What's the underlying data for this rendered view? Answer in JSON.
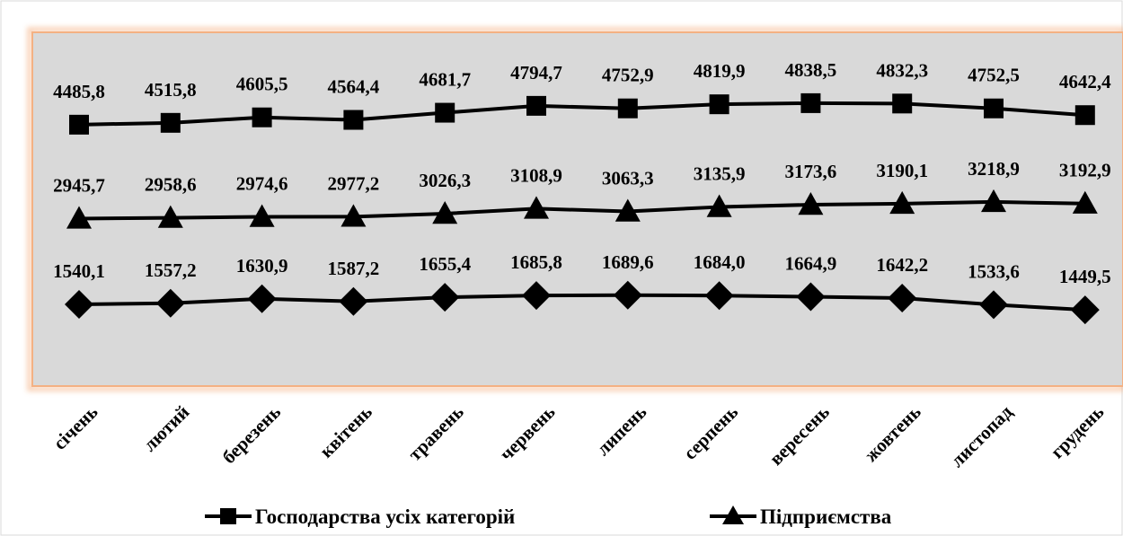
{
  "chart_data": {
    "type": "line",
    "categories": [
      "січень",
      "лютий",
      "березень",
      "квітень",
      "травень",
      "червень",
      "липень",
      "серпень",
      "вересень",
      "жовтень",
      "листопад",
      "грудень"
    ],
    "series": [
      {
        "name": "Господарства усіх категорій",
        "marker": "square",
        "values": [
          4485.8,
          4515.8,
          4605.5,
          4564.4,
          4681.7,
          4794.7,
          4752.9,
          4819.9,
          4838.5,
          4832.3,
          4752.5,
          4642.4
        ],
        "labels": [
          "4485,8",
          "4515,8",
          "4605,5",
          "4564,4",
          "4681,7",
          "4794,7",
          "4752,9",
          "4819,9",
          "4838,5",
          "4832,3",
          "4752,5",
          "4642,4"
        ]
      },
      {
        "name": "Підприємства",
        "marker": "triangle",
        "values": [
          2945.7,
          2958.6,
          2974.6,
          2977.2,
          3026.3,
          3108.9,
          3063.3,
          3135.9,
          3173.6,
          3190.1,
          3218.9,
          3192.9
        ],
        "labels": [
          "2945,7",
          "2958,6",
          "2974,6",
          "2977,2",
          "3026,3",
          "3108,9",
          "3063,3",
          "3135,9",
          "3173,6",
          "3190,1",
          "3218,9",
          "3192,9"
        ]
      },
      {
        "name": "",
        "marker": "diamond",
        "values": [
          1540.1,
          1557.2,
          1630.9,
          1587.2,
          1655.4,
          1685.8,
          1689.6,
          1684.0,
          1664.9,
          1642.2,
          1533.6,
          1449.5
        ],
        "labels": [
          "1540,1",
          "1557,2",
          "1630,9",
          "1587,2",
          "1655,4",
          "1685,8",
          "1689,6",
          "1684,0",
          "1664,9",
          "1642,2",
          "1533,6",
          "1449,5"
        ]
      }
    ],
    "legend": {
      "position": "bottom",
      "entries": [
        "Господарства усіх категорій",
        "Підприємства"
      ]
    },
    "ylim": [
      200,
      6000
    ],
    "grid": false,
    "colors": {
      "plot_area": "#d9d9d9",
      "plot_border": "#f4b183",
      "line": "#000000"
    }
  }
}
